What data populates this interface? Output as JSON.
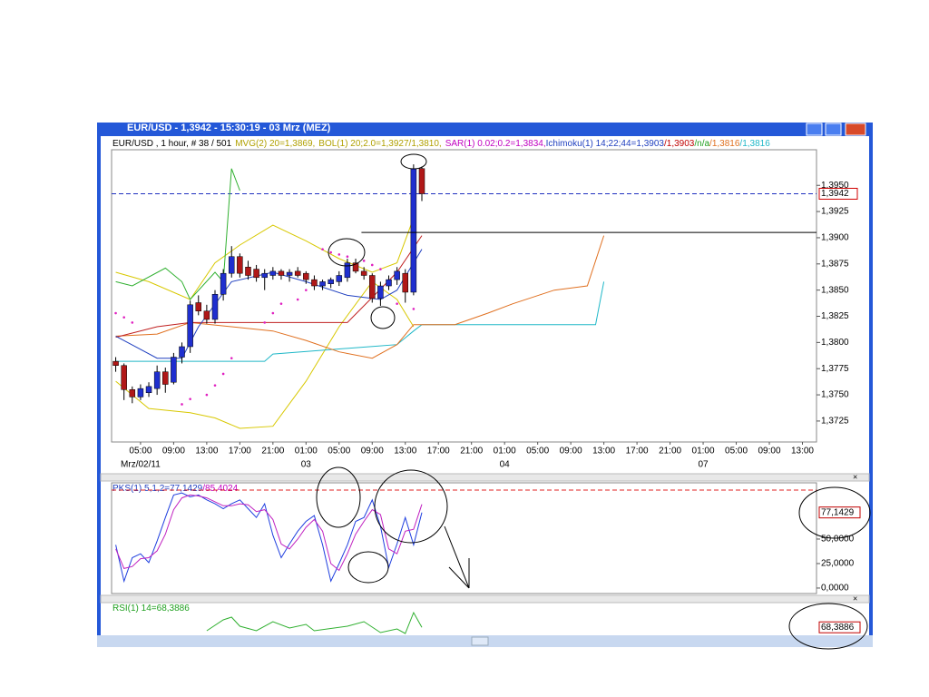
{
  "window": {
    "title": "EUR/USD - 1,3942 - 15:30:19 - 03 Mrz (MEZ)"
  },
  "chart_data": [
    {
      "type": "candlestick",
      "legend": [
        {
          "text": "EUR/USD , 1 hour, # 38 / 501",
          "color": "#000000"
        },
        {
          "text": "MVG(2) 20=1,3869,",
          "color": "#b0a000"
        },
        {
          "text": "BOL(1) 20;2.0=1,3927/1,3810,",
          "color": "#b0a000"
        },
        {
          "text": "SAR(1) 0.02;0.2=1,3834,",
          "color": "#c000c0"
        },
        {
          "text": "Ichimoku(1) 14;22;44=1,3903",
          "color": "#1f3fbf"
        },
        {
          "text": "/1,3903",
          "color": "#c00000"
        },
        {
          "text": "/n/a",
          "color": "#20a020"
        },
        {
          "text": "/1,3816",
          "color": "#e07020"
        },
        {
          "text": "/1,3816",
          "color": "#20b8c8"
        }
      ],
      "xlim": [
        1.5,
        86.7
      ],
      "ylim": [
        1.3705,
        1.3984
      ],
      "xticks": [
        {
          "value": 5,
          "label": "05:00"
        },
        {
          "value": 9,
          "label": "09:00"
        },
        {
          "value": 13,
          "label": "13:00"
        },
        {
          "value": 17,
          "label": "17:00"
        },
        {
          "value": 21,
          "label": "21:00"
        },
        {
          "value": 25,
          "label": "01:00"
        },
        {
          "value": 29,
          "label": "05:00"
        },
        {
          "value": 33,
          "label": "09:00"
        },
        {
          "value": 37,
          "label": "13:00"
        },
        {
          "value": 41,
          "label": "17:00"
        },
        {
          "value": 45,
          "label": "21:00"
        },
        {
          "value": 49,
          "label": "01:00"
        },
        {
          "value": 53,
          "label": "05:00"
        },
        {
          "value": 57,
          "label": "09:00"
        },
        {
          "value": 61,
          "label": "13:00"
        },
        {
          "value": 65,
          "label": "17:00"
        },
        {
          "value": 69,
          "label": "21:00"
        },
        {
          "value": 73,
          "label": "01:00"
        },
        {
          "value": 77,
          "label": "05:00"
        },
        {
          "value": 81,
          "label": "09:00"
        },
        {
          "value": 85,
          "label": "13:00"
        }
      ],
      "date_labels": [
        {
          "value": 5,
          "label": "Mrz/02/11"
        },
        {
          "value": 25,
          "label": "03"
        },
        {
          "value": 49,
          "label": "04"
        },
        {
          "value": 73,
          "label": "07"
        }
      ],
      "yticks": [
        {
          "value": 1.3725,
          "label": "1,3725"
        },
        {
          "value": 1.375,
          "label": "1,3750"
        },
        {
          "value": 1.3775,
          "label": "1,3775"
        },
        {
          "value": 1.38,
          "label": "1,3800"
        },
        {
          "value": 1.3825,
          "label": "1,3825"
        },
        {
          "value": 1.385,
          "label": "1,3850"
        },
        {
          "value": 1.3875,
          "label": "1,3875"
        },
        {
          "value": 1.39,
          "label": "1,3900"
        },
        {
          "value": 1.3925,
          "label": "1,3925"
        },
        {
          "value": 1.395,
          "label": "1,3950"
        }
      ],
      "current_price": {
        "value": 1.3942,
        "label": "1,3942",
        "color": "#2030c0"
      },
      "level_line": {
        "value": 1.3905,
        "from": 31.7,
        "color": "#000000"
      },
      "up_color": "#1f2fcf",
      "down_color": "#b01818",
      "x": [
        2,
        3,
        4,
        5,
        6,
        7,
        8,
        9,
        10,
        11,
        12,
        13,
        14,
        15,
        16,
        17,
        18,
        19,
        20,
        21,
        22,
        23,
        24,
        25,
        26,
        27,
        28,
        29,
        30,
        31,
        32,
        33,
        34,
        35,
        36,
        37,
        38,
        39
      ],
      "open": [
        1.3782,
        1.3778,
        1.3755,
        1.3748,
        1.3752,
        1.3756,
        1.3772,
        1.3762,
        1.3786,
        1.3796,
        1.3838,
        1.383,
        1.3822,
        1.3846,
        1.3866,
        1.3882,
        1.3872,
        1.387,
        1.3862,
        1.3864,
        1.3868,
        1.3864,
        1.3868,
        1.3866,
        1.386,
        1.3854,
        1.3856,
        1.3858,
        1.3862,
        1.3876,
        1.3868,
        1.3864,
        1.3842,
        1.3854,
        1.386,
        1.3866,
        1.3848,
        1.3966
      ],
      "high": [
        1.3786,
        1.378,
        1.3758,
        1.376,
        1.3762,
        1.3778,
        1.3776,
        1.379,
        1.38,
        1.384,
        1.3845,
        1.3836,
        1.385,
        1.387,
        1.3892,
        1.3885,
        1.3878,
        1.3874,
        1.387,
        1.3872,
        1.387,
        1.387,
        1.3872,
        1.3868,
        1.3864,
        1.386,
        1.3862,
        1.3868,
        1.388,
        1.388,
        1.3872,
        1.3866,
        1.3858,
        1.3864,
        1.3872,
        1.387,
        1.397,
        1.3968
      ],
      "low": [
        1.3772,
        1.3745,
        1.3742,
        1.3745,
        1.3748,
        1.375,
        1.3752,
        1.376,
        1.378,
        1.379,
        1.3826,
        1.3818,
        1.3818,
        1.384,
        1.3862,
        1.3862,
        1.386,
        1.3858,
        1.385,
        1.386,
        1.386,
        1.3858,
        1.3862,
        1.3856,
        1.385,
        1.385,
        1.3852,
        1.3854,
        1.3858,
        1.3866,
        1.386,
        1.3838,
        1.3835,
        1.385,
        1.3855,
        1.3838,
        1.3845,
        1.3935
      ],
      "close": [
        1.3778,
        1.3755,
        1.3748,
        1.3756,
        1.3758,
        1.3772,
        1.376,
        1.3786,
        1.3796,
        1.3836,
        1.383,
        1.3822,
        1.3846,
        1.3866,
        1.3882,
        1.3866,
        1.3864,
        1.3862,
        1.3866,
        1.3868,
        1.3864,
        1.3867,
        1.3864,
        1.386,
        1.3854,
        1.3858,
        1.386,
        1.3864,
        1.3876,
        1.3868,
        1.3864,
        1.3842,
        1.3854,
        1.386,
        1.3868,
        1.3848,
        1.3966,
        1.3942
      ],
      "series": [
        {
          "color": "#d8c800",
          "x": [
            2,
            6,
            11,
            14,
            17,
            21,
            25,
            29,
            33,
            36,
            38
          ],
          "values": [
            1.3867,
            1.3858,
            1.3841,
            1.3876,
            1.3893,
            1.3912,
            1.3897,
            1.388,
            1.3867,
            1.3876,
            1.3919
          ]
        },
        {
          "color": "#d8c800",
          "x": [
            2,
            6,
            11,
            14,
            17,
            21,
            25,
            29,
            33,
            36,
            38
          ],
          "values": [
            1.3763,
            1.3737,
            1.3733,
            1.3728,
            1.3718,
            1.372,
            1.3763,
            1.3815,
            1.3858,
            1.3841,
            1.3815
          ]
        },
        {
          "color": "#20b8c8",
          "x": [
            2,
            20,
            21,
            36,
            38,
            39,
            60,
            61
          ],
          "values": [
            1.3782,
            1.3782,
            1.3789,
            1.3798,
            1.3811,
            1.3817,
            1.3817,
            1.3858
          ]
        },
        {
          "color": "#e07020",
          "x": [
            2,
            7,
            11,
            21,
            25,
            29,
            33,
            36,
            38,
            43,
            47,
            50,
            55,
            59,
            61
          ],
          "values": [
            1.3806,
            1.3808,
            1.3819,
            1.3811,
            1.3802,
            1.3791,
            1.3785,
            1.3798,
            1.3817,
            1.3817,
            1.3828,
            1.3837,
            1.385,
            1.3854,
            1.3902
          ]
        },
        {
          "color": "#c02020",
          "x": [
            2,
            7,
            11,
            21,
            30,
            34,
            36,
            39
          ],
          "values": [
            1.3805,
            1.3815,
            1.3819,
            1.3819,
            1.3819,
            1.3851,
            1.3867,
            1.3902
          ]
        },
        {
          "color": "#2040c0",
          "x": [
            2,
            7,
            10,
            12,
            16,
            21,
            25,
            30,
            34,
            36,
            39
          ],
          "values": [
            1.3806,
            1.3785,
            1.3785,
            1.3815,
            1.3858,
            1.3867,
            1.3858,
            1.3845,
            1.3841,
            1.385,
            1.3889
          ]
        },
        {
          "color": "#30b030",
          "x": [
            2,
            4,
            8,
            10,
            11,
            14,
            15,
            16,
            17
          ],
          "values": [
            1.3858,
            1.3854,
            1.3871,
            1.3858,
            1.3841,
            1.3867,
            1.3858,
            1.3966,
            1.3945
          ]
        }
      ],
      "markers": {
        "color": "#e020c0",
        "x": [
          2,
          3,
          4,
          10,
          11,
          13,
          14,
          15,
          16,
          20,
          21,
          22,
          24,
          25,
          27,
          28,
          29,
          30,
          32,
          33,
          34,
          36,
          38
        ],
        "values": [
          1.3828,
          1.3824,
          1.3819,
          1.3741,
          1.3746,
          1.375,
          1.3759,
          1.377,
          1.3785,
          1.3819,
          1.3828,
          1.3837,
          1.3841,
          1.385,
          1.3889,
          1.3886,
          1.3884,
          1.3882,
          1.3878,
          1.3874,
          1.387,
          1.3837,
          1.3832
        ]
      }
    },
    {
      "type": "line",
      "legend": [
        {
          "text": "PKS(1) 5,1,2=77,1429",
          "color": "#1f3fbf"
        },
        {
          "text": "/85,4024",
          "color": "#c000c0"
        }
      ],
      "xlim": [
        1.5,
        86.7
      ],
      "ylim": [
        -5.6,
        107.4
      ],
      "yticks": [
        {
          "value": 0,
          "label": "0,0000"
        },
        {
          "value": 25,
          "label": "25,0000"
        },
        {
          "value": 50,
          "label": "50,0000"
        }
      ],
      "level": 100,
      "level_color": "#e02020",
      "current_value": {
        "value": 77.1429,
        "label": "77,1429",
        "color": "#c00000"
      },
      "series": [
        {
          "color": "#1f3fdf",
          "x": [
            2,
            3,
            4,
            5,
            6,
            7,
            8,
            9,
            10,
            11,
            12,
            13,
            14,
            15,
            16,
            17,
            18,
            19,
            20,
            21,
            22,
            23,
            24,
            25,
            26,
            27,
            28,
            29,
            30,
            31,
            32,
            33,
            34,
            35,
            36,
            37,
            38,
            39
          ],
          "values": [
            44,
            7,
            31,
            35,
            26,
            48,
            72,
            95,
            97,
            93,
            95,
            90,
            86,
            81,
            86,
            90,
            81,
            72,
            86,
            54,
            31,
            45,
            58,
            68,
            74,
            44,
            7,
            25,
            44,
            68,
            72,
            90,
            63,
            21,
            45,
            72,
            44,
            77.1429
          ]
        },
        {
          "color": "#c020c0",
          "x": [
            2,
            3,
            4,
            5,
            6,
            7,
            8,
            9,
            10,
            11,
            12,
            13,
            14,
            15,
            16,
            17,
            18,
            19,
            20,
            21,
            22,
            23,
            24,
            25,
            26,
            27,
            28,
            29,
            30,
            31,
            32,
            33,
            34,
            35,
            36,
            37,
            38,
            39
          ],
          "values": [
            40,
            20,
            22,
            30,
            31,
            38,
            55,
            80,
            92,
            95,
            94,
            92,
            88,
            84,
            84,
            86,
            85,
            78,
            80,
            70,
            45,
            40,
            50,
            62,
            70,
            58,
            25,
            18,
            35,
            55,
            68,
            80,
            75,
            40,
            35,
            58,
            60,
            85.4024
          ]
        }
      ]
    },
    {
      "type": "line",
      "legend": [
        {
          "text": "RSI(1) 14=68,3886",
          "color": "#20a020"
        }
      ],
      "xlim": [
        1.5,
        86.7
      ],
      "ylim": [
        64,
        80
      ],
      "current_value": {
        "value": 68.3886,
        "label": "68,3886",
        "color": "#c00000"
      },
      "series": [
        {
          "color": "#30b030",
          "x": [
            13,
            15,
            16,
            17,
            19,
            21,
            23,
            25,
            26,
            30,
            32,
            34,
            36,
            37,
            38,
            39
          ],
          "values": [
            66.5,
            72.5,
            74,
            69,
            66.5,
            71.5,
            68,
            70,
            66.5,
            69,
            71.5,
            65.5,
            67.5,
            65,
            76.5,
            68.3886
          ]
        }
      ]
    }
  ]
}
